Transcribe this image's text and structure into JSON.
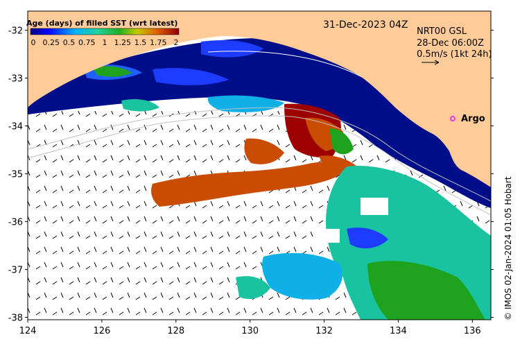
{
  "map": {
    "date_label": "31-Dec-2023 04Z",
    "colorbar": {
      "title": "Age (days) of filled SST (wrt latest)",
      "tick_labels": [
        "0",
        "0.25",
        "0.5",
        "0.75",
        "1",
        "1.25",
        "1.5",
        "1.75",
        "2"
      ],
      "range": [
        0,
        2
      ]
    },
    "current_product": {
      "name": "NRT00 GSL",
      "time": "28-Dec 06:00Z",
      "scale_label": "0.5m/s (1kt 24h)"
    },
    "argo": {
      "label": "Argo",
      "color": "#ff00ff"
    },
    "credit": "© IMOS 02-Jan-2024 01:05 Hobart",
    "y_axis": {
      "range": [
        -38.05,
        -31.6
      ],
      "ticks": [
        {
          "v": -32,
          "label": "-32"
        },
        {
          "v": -33,
          "label": "-33"
        },
        {
          "v": -34,
          "label": "-34"
        },
        {
          "v": -35,
          "label": "-35"
        },
        {
          "v": -36,
          "label": "-36"
        },
        {
          "v": -37,
          "label": "-37"
        },
        {
          "v": -38,
          "label": "-38"
        }
      ]
    },
    "x_axis": {
      "range": [
        124,
        136.5
      ],
      "ticks": [
        {
          "v": 124,
          "label": "124"
        },
        {
          "v": 126,
          "label": "126"
        },
        {
          "v": 128,
          "label": "128"
        },
        {
          "v": 130,
          "label": "130"
        },
        {
          "v": 132,
          "label": "132"
        },
        {
          "v": 134,
          "label": "134"
        },
        {
          "v": 136,
          "label": "136"
        }
      ]
    },
    "colors": {
      "land": "#ffcc99",
      "ocean_fresh": "#000e8a",
      "ocean_mid": "#1e3cff",
      "cyan": "#0fb0e8",
      "teal": "#19c39f",
      "green": "#1fa31f",
      "orange": "#c94c00",
      "red": "#9c0000"
    }
  }
}
